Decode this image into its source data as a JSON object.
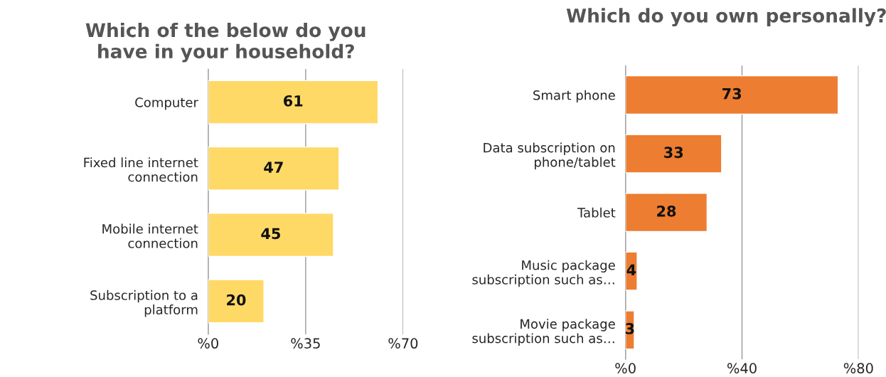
{
  "chart_data": [
    {
      "type": "bar",
      "orientation": "horizontal",
      "title": "Which of the below do you\nhave in your household?",
      "categories": [
        "Computer",
        "Fixed line internet\nconnection",
        "Mobile internet\nconnection",
        "Subscription to a\nplatform"
      ],
      "series": [
        {
          "color": "#ffd966",
          "values": [
            61,
            47,
            45,
            20
          ]
        }
      ],
      "xlim": [
        0,
        70
      ],
      "xticks": [
        {
          "value": 0,
          "label": "%0"
        },
        {
          "value": 35,
          "label": "%35"
        },
        {
          "value": 70,
          "label": "%70"
        }
      ],
      "grid": "x",
      "data_labels": true
    },
    {
      "type": "bar",
      "orientation": "horizontal",
      "title": "Which do you own personally?",
      "categories": [
        "Smart phone",
        "Data subscription on\nphone/tablet",
        "Tablet",
        "Music package\nsubscription such as…",
        "Movie package\nsubscription such as…"
      ],
      "series": [
        {
          "color": "#ed7d31",
          "values": [
            73,
            33,
            28,
            4,
            3
          ]
        }
      ],
      "xlim": [
        0,
        80
      ],
      "xticks": [
        {
          "value": 0,
          "label": "%0"
        },
        {
          "value": 40,
          "label": "%40"
        },
        {
          "value": 80,
          "label": "%80"
        }
      ],
      "grid": "x",
      "data_labels": true
    }
  ]
}
